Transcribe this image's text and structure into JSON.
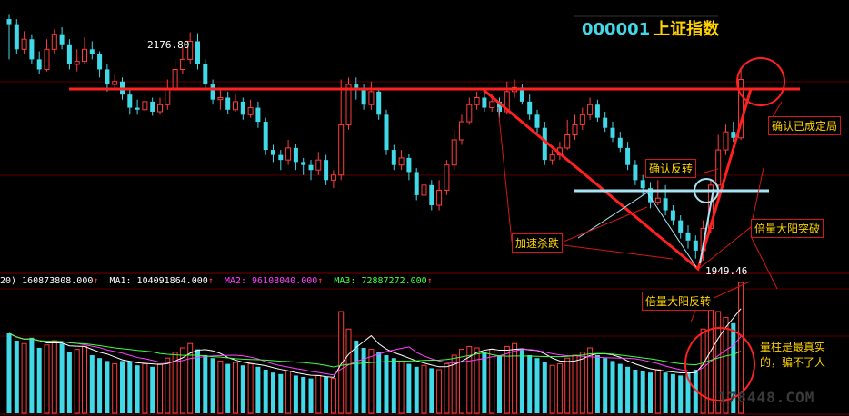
{
  "title": {
    "code": "000001",
    "name": "上证指数"
  },
  "price_labels": {
    "high": "2176.80",
    "low": "1949.46"
  },
  "volume_legend": {
    "prefix": "20)",
    "vol": "160873808.000",
    "ma1": "MA1: 104091864.000",
    "ma2": "MA2: 96108040.000",
    "ma3": "MA3: 72887272.000",
    "arrow": "↑"
  },
  "annotations": {
    "confirm_done": "确认已成定局",
    "confirm_reverse": "确认反转",
    "accel_drop": "加速杀跌",
    "double_vol_break": "倍量大阳突破",
    "double_vol_reverse": "倍量大阳反转",
    "volume_note_1": "量柱是最真实",
    "volume_note_2": "的，骗不了人"
  },
  "watermark": "178448.COM",
  "colors": {
    "up": "#ff3c3c",
    "down": "#41d8e8",
    "line": "#ff2020",
    "ma1": "#ffffff",
    "ma2": "#ff40ff",
    "ma3": "#40ff40"
  },
  "chart_data": {
    "type": "candlestick",
    "title": "000001 上证指数",
    "ylim": [
      1940,
      2200
    ],
    "candles": [
      [
        2190,
        2185,
        2195,
        2150
      ],
      [
        2185,
        2160,
        2190,
        2155
      ],
      [
        2160,
        2170,
        2178,
        2155
      ],
      [
        2170,
        2150,
        2175,
        2145
      ],
      [
        2150,
        2140,
        2158,
        2135
      ],
      [
        2140,
        2160,
        2170,
        2138
      ],
      [
        2160,
        2175,
        2180,
        2155
      ],
      [
        2175,
        2165,
        2182,
        2160
      ],
      [
        2165,
        2145,
        2170,
        2140
      ],
      [
        2145,
        2148,
        2160,
        2138
      ],
      [
        2148,
        2160,
        2172,
        2145
      ],
      [
        2160,
        2155,
        2168,
        2150
      ],
      [
        2155,
        2140,
        2158,
        2132
      ],
      [
        2140,
        2125,
        2145,
        2118
      ],
      [
        2125,
        2128,
        2135,
        2120
      ],
      [
        2128,
        2115,
        2132,
        2110
      ],
      [
        2115,
        2102,
        2120,
        2095
      ],
      [
        2102,
        2100,
        2110,
        2095
      ],
      [
        2100,
        2108,
        2115,
        2098
      ],
      [
        2108,
        2098,
        2112,
        2094
      ],
      [
        2098,
        2105,
        2112,
        2095
      ],
      [
        2105,
        2120,
        2130,
        2100
      ],
      [
        2120,
        2140,
        2150,
        2118
      ],
      [
        2140,
        2150,
        2162,
        2135
      ],
      [
        2150,
        2168,
        2177,
        2145
      ],
      [
        2168,
        2145,
        2176,
        2140
      ],
      [
        2145,
        2125,
        2150,
        2120
      ],
      [
        2125,
        2110,
        2130,
        2105
      ],
      [
        2110,
        2112,
        2120,
        2100
      ],
      [
        2112,
        2100,
        2118,
        2096
      ],
      [
        2100,
        2108,
        2115,
        2098
      ],
      [
        2108,
        2095,
        2112,
        2090
      ],
      [
        2095,
        2102,
        2110,
        2092
      ],
      [
        2102,
        2088,
        2108,
        2082
      ],
      [
        2088,
        2060,
        2092,
        2055
      ],
      [
        2060,
        2055,
        2065,
        2048
      ],
      [
        2055,
        2050,
        2060,
        2040
      ],
      [
        2050,
        2062,
        2070,
        2045
      ],
      [
        2062,
        2048,
        2066,
        2040
      ],
      [
        2048,
        2045,
        2052,
        2035
      ],
      [
        2045,
        2040,
        2050,
        2030
      ],
      [
        2040,
        2050,
        2058,
        2035
      ],
      [
        2050,
        2030,
        2055,
        2025
      ],
      [
        2030,
        2035,
        2040,
        2022
      ],
      [
        2035,
        2085,
        2130,
        2030
      ],
      [
        2085,
        2125,
        2132,
        2080
      ],
      [
        2125,
        2120,
        2132,
        2110
      ],
      [
        2120,
        2105,
        2125,
        2100
      ],
      [
        2105,
        2118,
        2128,
        2100
      ],
      [
        2118,
        2095,
        2122,
        2090
      ],
      [
        2095,
        2060,
        2100,
        2055
      ],
      [
        2060,
        2045,
        2065,
        2040
      ],
      [
        2045,
        2052,
        2060,
        2040
      ],
      [
        2052,
        2038,
        2056,
        2030
      ],
      [
        2038,
        2015,
        2042,
        2010
      ],
      [
        2015,
        2025,
        2032,
        2008
      ],
      [
        2025,
        2005,
        2030,
        2000
      ],
      [
        2005,
        2020,
        2030,
        2000
      ],
      [
        2020,
        2045,
        2050,
        2015
      ],
      [
        2045,
        2070,
        2080,
        2040
      ],
      [
        2070,
        2088,
        2095,
        2065
      ],
      [
        2088,
        2105,
        2112,
        2085
      ],
      [
        2105,
        2112,
        2118,
        2100
      ],
      [
        2112,
        2102,
        2118,
        2098
      ],
      [
        2102,
        2108,
        2115,
        2098
      ],
      [
        2108,
        2098,
        2112,
        2092
      ],
      [
        2098,
        2118,
        2128,
        2095
      ],
      [
        2118,
        2122,
        2130,
        2112
      ],
      [
        2122,
        2108,
        2126,
        2105
      ],
      [
        2108,
        2095,
        2115,
        2090
      ],
      [
        2095,
        2082,
        2100,
        2075
      ],
      [
        2082,
        2050,
        2088,
        2045
      ],
      [
        2050,
        2055,
        2060,
        2045
      ],
      [
        2055,
        2062,
        2068,
        2050
      ],
      [
        2062,
        2075,
        2090,
        2060
      ],
      [
        2075,
        2085,
        2095,
        2070
      ],
      [
        2085,
        2095,
        2102,
        2080
      ],
      [
        2095,
        2105,
        2112,
        2090
      ],
      [
        2105,
        2092,
        2110,
        2088
      ],
      [
        2092,
        2082,
        2098,
        2078
      ],
      [
        2082,
        2072,
        2088,
        2068
      ],
      [
        2072,
        2062,
        2078,
        2058
      ],
      [
        2062,
        2045,
        2068,
        2040
      ],
      [
        2045,
        2030,
        2050,
        2025
      ],
      [
        2030,
        2022,
        2035,
        2015
      ],
      [
        2022,
        2008,
        2028,
        2002
      ],
      [
        2008,
        2012,
        2030,
        2005
      ],
      [
        2012,
        2000,
        2025,
        1995
      ],
      [
        2000,
        1990,
        2005,
        1985
      ],
      [
        1990,
        1978,
        1995,
        1972
      ],
      [
        1978,
        1970,
        1985,
        1962
      ],
      [
        1970,
        1960,
        1975,
        1952
      ],
      [
        1960,
        1982,
        1990,
        1950
      ],
      [
        1982,
        2025,
        2030,
        1978
      ],
      [
        2025,
        2060,
        2075,
        2020
      ],
      [
        2060,
        2078,
        2085,
        2055
      ],
      [
        2078,
        2072,
        2088,
        2068
      ],
      [
        2072,
        2130,
        2140,
        2070
      ]
    ],
    "volume": [
      55,
      50,
      48,
      52,
      45,
      47,
      50,
      48,
      42,
      44,
      46,
      40,
      38,
      36,
      34,
      36,
      35,
      33,
      34,
      32,
      34,
      38,
      42,
      45,
      48,
      44,
      40,
      38,
      36,
      34,
      35,
      33,
      34,
      32,
      30,
      28,
      27,
      29,
      26,
      25,
      24,
      26,
      25,
      24,
      70,
      58,
      50,
      45,
      44,
      42,
      40,
      38,
      36,
      34,
      32,
      33,
      31,
      30,
      34,
      40,
      44,
      46,
      45,
      42,
      44,
      40,
      46,
      48,
      44,
      40,
      38,
      35,
      33,
      34,
      38,
      40,
      42,
      45,
      40,
      38,
      36,
      34,
      32,
      30,
      29,
      28,
      30,
      28,
      27,
      26,
      28,
      30,
      58,
      72,
      70,
      66,
      62,
      90
    ],
    "ma": {
      "MA1": 104091864.0,
      "MA2": 96108040.0,
      "MA3": 72887272.0
    },
    "last_volume": 160873808.0,
    "price_extremes": {
      "high": 2176.8,
      "low": 1949.46
    }
  }
}
